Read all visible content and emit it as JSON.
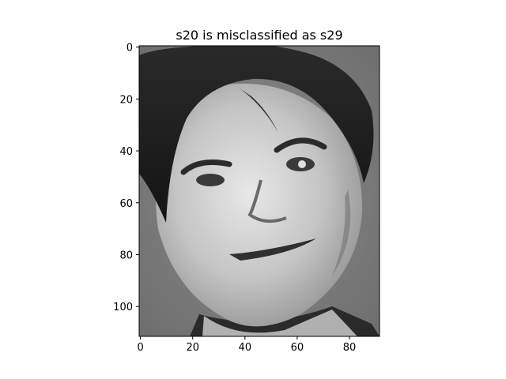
{
  "chart_data": {
    "type": "heatmap",
    "title": "s20 is misclassified as s29",
    "xlabel": "",
    "ylabel": "",
    "image": {
      "width": 92,
      "height": 112,
      "colormap": "gray",
      "content": "grayscale face photograph"
    },
    "xlim": [
      -0.5,
      91.5
    ],
    "ylim": [
      111.5,
      -0.5
    ],
    "xticks": [
      0,
      20,
      40,
      60,
      80
    ],
    "yticks": [
      0,
      20,
      40,
      60,
      80,
      100
    ],
    "grid": false,
    "frame_color": "#000000"
  }
}
